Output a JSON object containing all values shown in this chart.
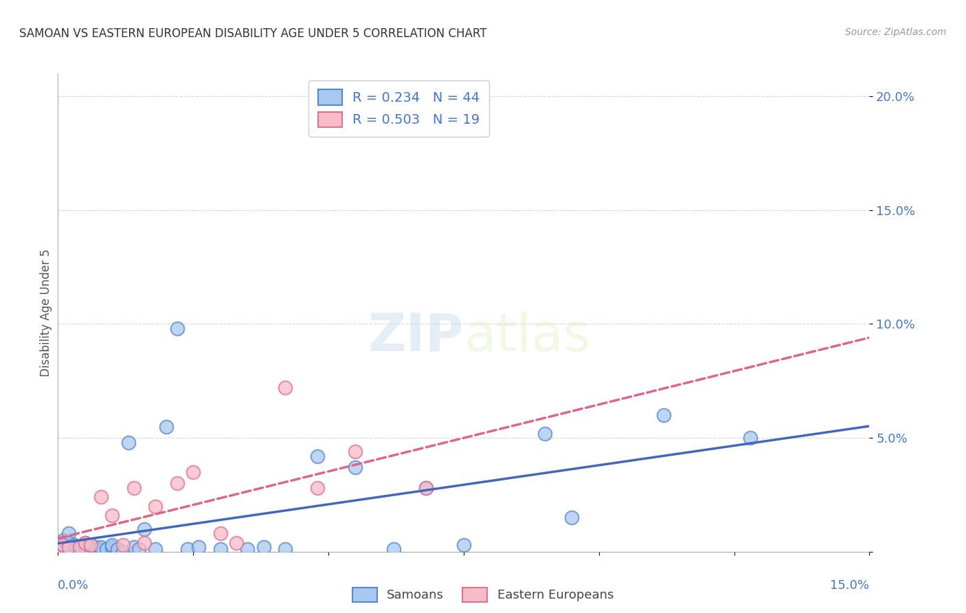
{
  "title": "SAMOAN VS EASTERN EUROPEAN DISABILITY AGE UNDER 5 CORRELATION CHART",
  "source": "Source: ZipAtlas.com",
  "ylabel": "Disability Age Under 5",
  "xlim": [
    0.0,
    0.15
  ],
  "ylim": [
    0.0,
    0.21
  ],
  "ytick_vals": [
    0.0,
    0.05,
    0.1,
    0.15,
    0.2
  ],
  "ytick_labels": [
    "",
    "5.0%",
    "10.0%",
    "15.0%",
    "20.0%"
  ],
  "xtick_vals": [
    0.0,
    0.025,
    0.05,
    0.075,
    0.1,
    0.125,
    0.15
  ],
  "legend_r_samoan": "0.234",
  "legend_n_samoan": "44",
  "legend_r_eastern": "0.503",
  "legend_n_eastern": "19",
  "color_samoan_fill": "#A8C8F0",
  "color_samoan_edge": "#5588CC",
  "color_eastern_fill": "#F8BCC8",
  "color_eastern_edge": "#E07090",
  "color_samoan_line": "#4466BB",
  "color_eastern_line": "#DD6688",
  "color_axis_blue": "#4477CC",
  "color_title": "#333333",
  "color_source": "#999999",
  "color_grid": "#CCCCCC",
  "color_bg": "#FFFFFF",
  "watermark_zip": "ZIP",
  "watermark_atlas": "atlas",
  "samoan_x": [
    0.001,
    0.001,
    0.002,
    0.002,
    0.002,
    0.003,
    0.003,
    0.004,
    0.004,
    0.005,
    0.005,
    0.006,
    0.006,
    0.007,
    0.007,
    0.008,
    0.008,
    0.009,
    0.01,
    0.01,
    0.011,
    0.012,
    0.013,
    0.014,
    0.015,
    0.016,
    0.018,
    0.02,
    0.022,
    0.024,
    0.026,
    0.03,
    0.035,
    0.038,
    0.042,
    0.048,
    0.055,
    0.062,
    0.068,
    0.075,
    0.09,
    0.095,
    0.112,
    0.128
  ],
  "samoan_y": [
    0.003,
    0.005,
    0.002,
    0.008,
    0.004,
    0.001,
    0.003,
    0.001,
    0.002,
    0.002,
    0.004,
    0.001,
    0.003,
    0.001,
    0.002,
    0.001,
    0.002,
    0.001,
    0.002,
    0.003,
    0.001,
    0.0,
    0.048,
    0.002,
    0.001,
    0.01,
    0.001,
    0.055,
    0.098,
    0.001,
    0.002,
    0.001,
    0.001,
    0.002,
    0.001,
    0.042,
    0.037,
    0.001,
    0.028,
    0.003,
    0.052,
    0.015,
    0.06,
    0.05
  ],
  "eastern_x": [
    0.001,
    0.002,
    0.004,
    0.005,
    0.006,
    0.008,
    0.01,
    0.012,
    0.014,
    0.016,
    0.018,
    0.022,
    0.025,
    0.03,
    0.033,
    0.042,
    0.048,
    0.055,
    0.068
  ],
  "eastern_y": [
    0.003,
    0.002,
    0.002,
    0.004,
    0.003,
    0.024,
    0.016,
    0.003,
    0.028,
    0.004,
    0.02,
    0.03,
    0.035,
    0.008,
    0.004,
    0.072,
    0.028,
    0.044,
    0.028
  ],
  "grid_color": "#CCCCCC"
}
